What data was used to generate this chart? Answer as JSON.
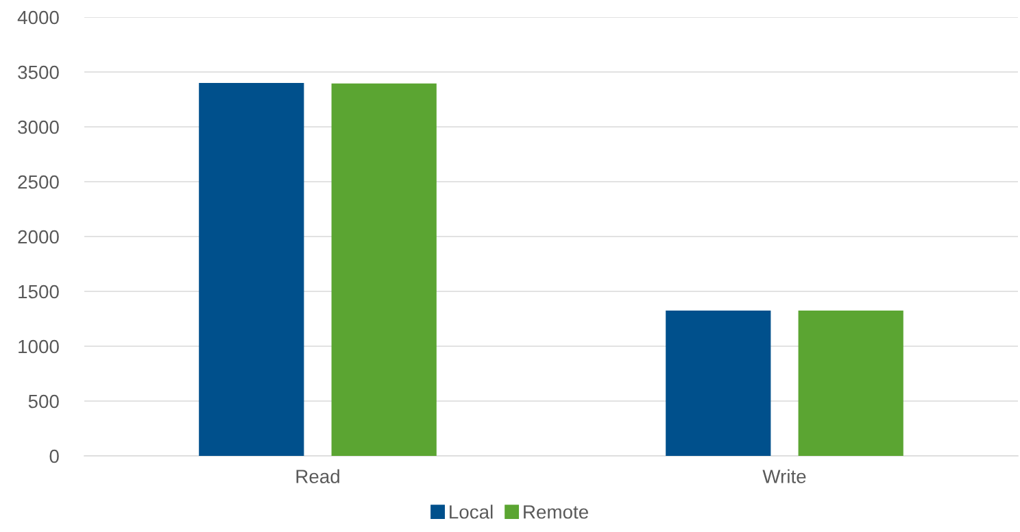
{
  "chart_data": {
    "type": "bar",
    "categories": [
      "Read",
      "Write"
    ],
    "series": [
      {
        "name": "Local",
        "color": "#00508c",
        "values": [
          3400,
          1325
        ]
      },
      {
        "name": "Remote",
        "color": "#5ba532",
        "values": [
          3395,
          1325
        ]
      }
    ],
    "ylim": [
      0,
      4000
    ],
    "yticks": [
      0,
      500,
      1000,
      1500,
      2000,
      2500,
      3000,
      3500,
      4000
    ],
    "grid": "y",
    "legend": "bottom"
  }
}
